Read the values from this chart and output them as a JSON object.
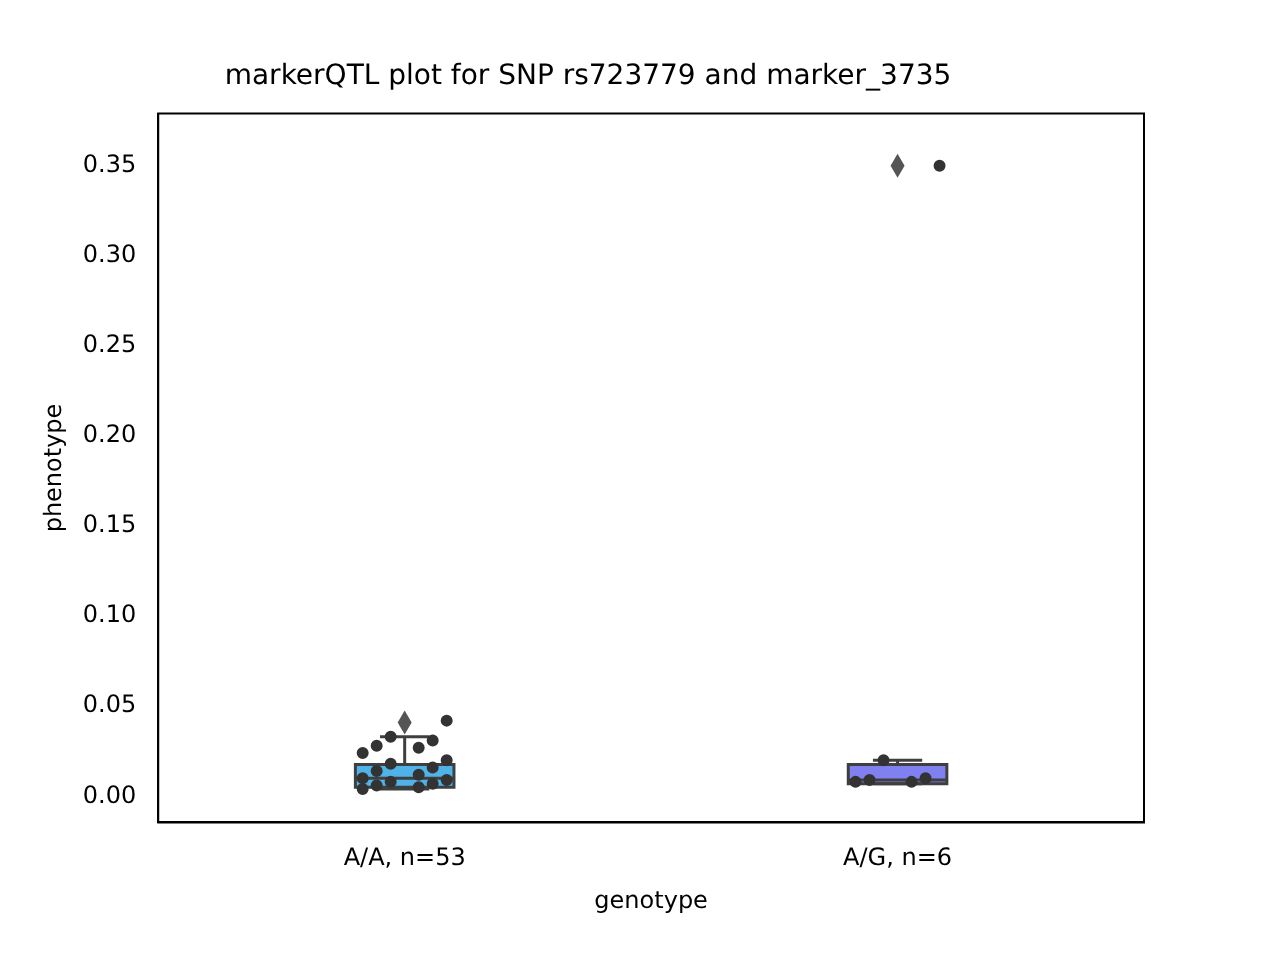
{
  "chart_data": {
    "type": "box",
    "title": "markerQTL plot for SNP rs723779 and marker_3735",
    "xlabel": "genotype",
    "ylabel": "phenotype",
    "categories": [
      "A/A, n=53",
      "A/G, n=6"
    ],
    "ylim": [
      -0.0145,
      0.379
    ],
    "yticks": [
      {
        "value": 0,
        "label": "0.00"
      },
      {
        "value": 0.05,
        "label": "0.05"
      },
      {
        "value": 0.1,
        "label": "0.10"
      },
      {
        "value": 0.15,
        "label": "0.15"
      },
      {
        "value": 0.2,
        "label": "0.20"
      },
      {
        "value": 0.25,
        "label": "0.25"
      },
      {
        "value": 0.3,
        "label": "0.30"
      },
      {
        "value": 0.35,
        "label": "0.35"
      }
    ],
    "grid": false,
    "legend": false,
    "series": [
      {
        "type": "box",
        "colors": [
          "#4fb3e8",
          "#8080f0"
        ],
        "boxes": [
          {
            "low": 0.004,
            "q1": 0.005,
            "median": 0.01,
            "q3": 0.0176,
            "high": 0.033,
            "outliers": [
              0.041
            ]
          },
          {
            "low": 0.007,
            "q1": 0.007,
            "median": 0.009,
            "q3": 0.0176,
            "high": 0.02,
            "outliers": [
              0.35
            ]
          }
        ]
      },
      {
        "type": "scatter",
        "color": "#333333",
        "marker": "circle",
        "x": [
          "A/A, n=53",
          "A/A, n=53",
          "A/A, n=53",
          "A/A, n=53",
          "A/A, n=53",
          "A/A, n=53",
          "A/A, n=53",
          "A/A, n=53",
          "A/A, n=53",
          "A/A, n=53",
          "A/A, n=53",
          "A/A, n=53",
          "A/A, n=53",
          "A/A, n=53",
          "A/A, n=53",
          "A/A, n=53",
          "A/A, n=53",
          "A/A, n=53",
          "A/G, n=6",
          "A/G, n=6",
          "A/G, n=6",
          "A/G, n=6",
          "A/G, n=6",
          "A/G, n=6"
        ],
        "values": [
          0.004,
          0.005,
          0.006,
          0.007,
          0.008,
          0.009,
          0.01,
          0.012,
          0.014,
          0.016,
          0.018,
          0.02,
          0.024,
          0.027,
          0.028,
          0.031,
          0.033,
          0.042,
          0.008,
          0.008,
          0.009,
          0.01,
          0.02,
          0.35
        ]
      }
    ]
  }
}
